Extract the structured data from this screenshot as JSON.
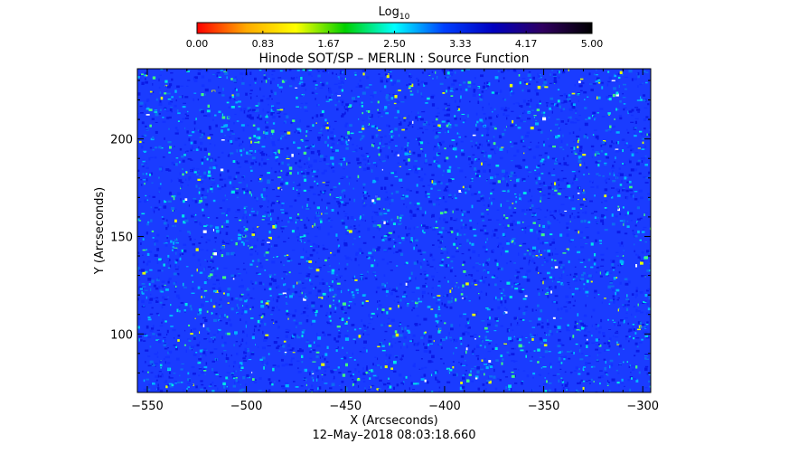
{
  "chart_data": {
    "type": "heatmap",
    "title": "Hinode SOT/SP – MERLIN : Source Function",
    "xlabel": "X (Arcseconds)",
    "ylabel": "Y (Arcseconds)",
    "xlim": [
      -555,
      -296
    ],
    "ylim": [
      70,
      236
    ],
    "x_ticks": [
      -550,
      -500,
      -450,
      -400,
      -350,
      -300
    ],
    "y_ticks": [
      100,
      150,
      200
    ],
    "timestamp": "12–May–2018 08:03:18.660",
    "colorbar": {
      "label_base": "Log",
      "label_sub": "10",
      "range": [
        0,
        5
      ],
      "ticks": [
        "0.00",
        "0.83",
        "1.67",
        "2.50",
        "3.33",
        "4.17",
        "5.00"
      ],
      "colors": [
        "#ff0000",
        "#ffaa00",
        "#ffff00",
        "#00d000",
        "#00ffff",
        "#0040ff",
        "#0000c0",
        "#300060",
        "#000000"
      ]
    },
    "texture_colors": [
      "#0a1ae6",
      "#1433ff",
      "#0d6cf2",
      "#00b4ff",
      "#00e6e6",
      "#40ff80",
      "#e6ff00",
      "#ffffff"
    ],
    "field_color": "#1a3cff"
  }
}
